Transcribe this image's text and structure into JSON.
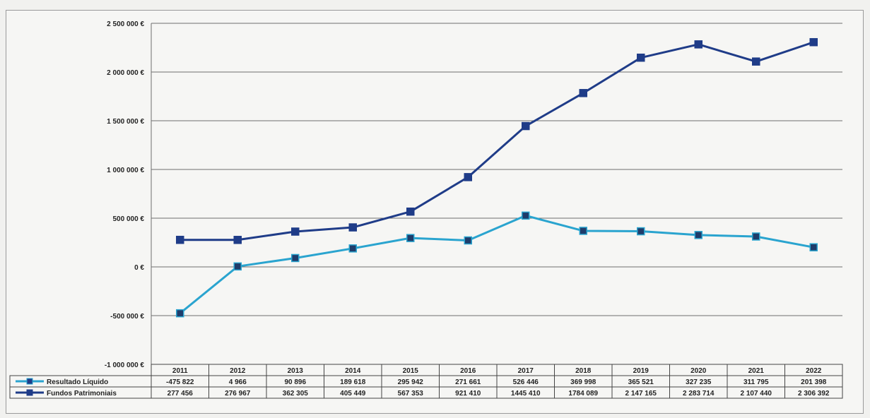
{
  "chart_data": {
    "type": "line",
    "title": "",
    "xlabel": "",
    "ylabel": "",
    "categories": [
      "2011",
      "2012",
      "2013",
      "2014",
      "2015",
      "2016",
      "2017",
      "2018",
      "2019",
      "2020",
      "2021",
      "2022"
    ],
    "ylim": [
      -1000000,
      2500000
    ],
    "ytick_values": [
      -1000000,
      -500000,
      0,
      500000,
      1000000,
      1500000,
      2000000,
      2500000
    ],
    "ytick_labels": [
      "-1 000 000 €",
      "-500 000 €",
      "0 €",
      "500 000 €",
      "1 000 000 €",
      "1 500 000 €",
      "2 000 000 €",
      "2 500 000 €"
    ],
    "grid": true,
    "legend": "data-table-left",
    "series": [
      {
        "name": "Resultado Líquido",
        "color": "#2aa4cf",
        "values": [
          -475822,
          4966,
          90896,
          189618,
          295942,
          271661,
          526446,
          369998,
          365521,
          327235,
          311795,
          201398
        ],
        "labels": [
          "-475 822",
          "4 966",
          "90 896",
          "189 618",
          "295 942",
          "271 661",
          "526 446",
          "369 998",
          "365 521",
          "327 235",
          "311 795",
          "201 398"
        ]
      },
      {
        "name": "Fundos Patrimoniais",
        "color": "#1f3c88",
        "values": [
          277456,
          276967,
          362305,
          405449,
          567353,
          921410,
          1445410,
          1784089,
          2147165,
          2283714,
          2107440,
          2306392
        ],
        "labels": [
          "277 456",
          "276 967",
          "362 305",
          "405 449",
          "567 353",
          "921 410",
          "1445 410",
          "1784 089",
          "2 147 165",
          "2 283 714",
          "2 107 440",
          "2 306 392"
        ]
      }
    ]
  }
}
